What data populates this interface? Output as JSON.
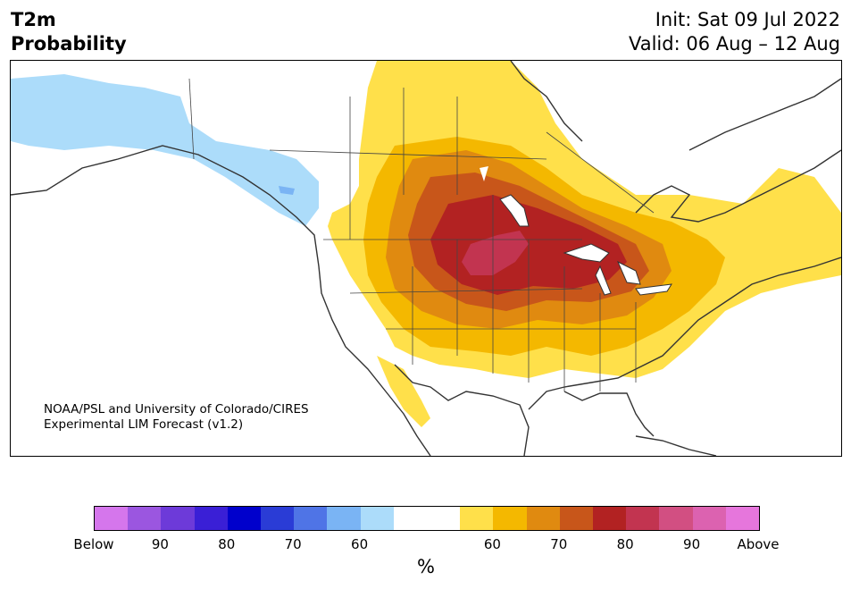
{
  "title": {
    "left_line1": "T2m",
    "left_line2": "Probability",
    "right_line1": "Init: Sat 09 Jul 2022",
    "right_line2": "Valid: 06 Aug – 12 Aug"
  },
  "credit": {
    "line1": "NOAA/PSL and University of Colorado/CIRES",
    "line2": "Experimental LIM Forecast (v1.2)"
  },
  "colorbar": {
    "unit": "%",
    "ticks": [
      "Below",
      "90",
      "80",
      "70",
      "60",
      "60",
      "70",
      "80",
      "90",
      "Above"
    ],
    "colors": [
      "#d576ec",
      "#9b56e0",
      "#6d3ad9",
      "#3a1fd6",
      "#0000cc",
      "#2a3cd6",
      "#4f74e6",
      "#7ab4f4",
      "#acdcfa",
      "#ffffff",
      "#ffffff",
      "#ffe04a",
      "#f4b800",
      "#e08a10",
      "#c8561a",
      "#b22222",
      "#c23450",
      "#d24f82",
      "#dc62b0",
      "#e676dc"
    ]
  },
  "legend_colors": {
    "cold_light": "#acdcfa",
    "cold_mid": "#7ab4f4",
    "warm_60": "#ffe04a",
    "warm_65": "#f4b800",
    "warm_70": "#e08a10",
    "warm_75": "#c8561a",
    "warm_80": "#b22222",
    "warm_85": "#c23450"
  }
}
